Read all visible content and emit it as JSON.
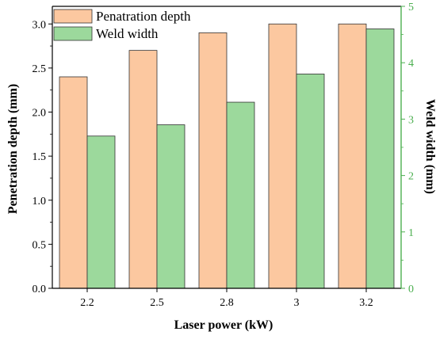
{
  "chart_data": {
    "type": "bar",
    "title": "",
    "xlabel": "Laser power (kW)",
    "ylabel": "Penetration depth (mm)",
    "y2label": "Weld width (mm)",
    "categories": [
      "2.2",
      "2.5",
      "2.8",
      "3",
      "3.2"
    ],
    "ylim": [
      0,
      3.2
    ],
    "y2lim": [
      0,
      5
    ],
    "yticks": [
      "0.0",
      "0.5",
      "1.0",
      "1.5",
      "2.0",
      "2.5",
      "3.0"
    ],
    "y2ticks": [
      "0",
      "1",
      "2",
      "3",
      "4",
      "5"
    ],
    "legend_position": "top-left",
    "series": [
      {
        "name": "Penatration depth",
        "axis": "left",
        "values": [
          2.4,
          2.7,
          2.9,
          3.0,
          3.0
        ]
      },
      {
        "name": "Weld width",
        "axis": "right",
        "values": [
          2.7,
          2.9,
          3.3,
          3.8,
          4.6
        ]
      }
    ],
    "colors": {
      "series": [
        "#fcc8a0",
        "#9cd99c"
      ],
      "right_axis": "#4caf50",
      "axis": "#000000"
    }
  }
}
